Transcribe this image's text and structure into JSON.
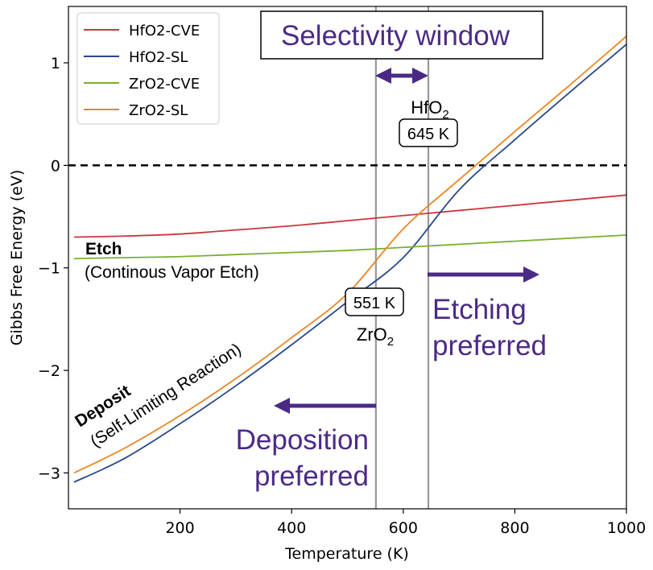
{
  "chart_data": {
    "type": "line",
    "xlabel": "Temperature (K)",
    "ylabel": "Gibbs Free Energy (eV)",
    "xlim": [
      0,
      1000
    ],
    "ylim": [
      -3.35,
      1.55
    ],
    "xticks": [
      200,
      400,
      600,
      800,
      1000
    ],
    "yticks": [
      -3,
      -2,
      -1,
      0,
      1
    ],
    "x_tick_labels": [
      "200",
      "400",
      "600",
      "800",
      "1000"
    ],
    "y_tick_labels": [
      "−3",
      "−2",
      "−1",
      "0",
      "1"
    ],
    "grid": false,
    "legend_position": "top-left",
    "reference_line": {
      "y": 0,
      "style": "dashed"
    },
    "series": [
      {
        "name": "HfO2-CVE",
        "color": "#c8383c",
        "x": [
          10,
          100,
          200,
          300,
          400,
          500,
          600,
          700,
          800,
          900,
          1000
        ],
        "y": [
          -0.7,
          -0.69,
          -0.67,
          -0.63,
          -0.59,
          -0.54,
          -0.49,
          -0.44,
          -0.39,
          -0.34,
          -0.29
        ]
      },
      {
        "name": "HfO2-SL",
        "color": "#27498a",
        "x": [
          10,
          100,
          200,
          300,
          400,
          500,
          600,
          700,
          800,
          900,
          1000
        ],
        "y": [
          -3.09,
          -2.86,
          -2.52,
          -2.15,
          -1.75,
          -1.33,
          -0.9,
          -0.24,
          0.25,
          0.72,
          1.18
        ]
      },
      {
        "name": "ZrO2-CVE",
        "color": "#79b12f",
        "x": [
          10,
          100,
          200,
          300,
          400,
          500,
          600,
          700,
          800,
          900,
          1000
        ],
        "y": [
          -0.91,
          -0.9,
          -0.89,
          -0.87,
          -0.85,
          -0.83,
          -0.8,
          -0.77,
          -0.74,
          -0.71,
          -0.68
        ]
      },
      {
        "name": "ZrO2-SL",
        "color": "#ec8524",
        "x": [
          10,
          100,
          200,
          300,
          400,
          500,
          600,
          700,
          800,
          900,
          1000
        ],
        "y": [
          -3.0,
          -2.76,
          -2.44,
          -2.08,
          -1.68,
          -1.25,
          -0.62,
          -0.14,
          0.33,
          0.79,
          1.26
        ]
      }
    ],
    "vertical_lines": [
      551,
      645
    ],
    "annotations": {
      "selectivity_window": "Selectivity window",
      "hfo2": "HfO",
      "hfo2_sub": "2",
      "hf_temp": "645 K",
      "zro2": "ZrO",
      "zro2_sub": "2",
      "zr_temp": "551 K",
      "etch": "Etch",
      "etch_sub": "(Continous Vapor Etch)",
      "deposit": "Deposit",
      "deposit_sub": "(Self-Limiting Reaction)",
      "etching_line1": "Etching",
      "etching_line2": "preferred",
      "deposition_line1": "Deposition",
      "deposition_line2": "preferred"
    }
  }
}
